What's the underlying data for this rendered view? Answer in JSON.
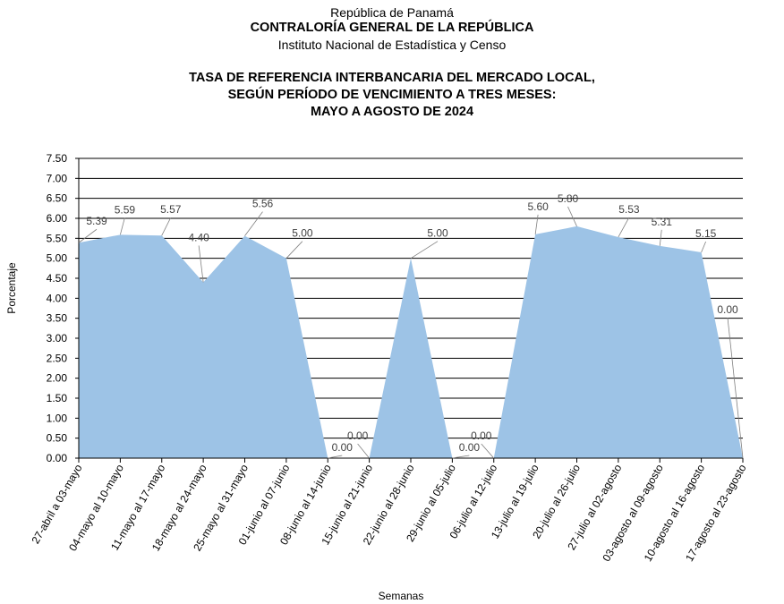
{
  "header": {
    "country": "República de Panamá",
    "institution": "CONTRALORÍA GENERAL DE LA REPÚBLICA",
    "office": "Instituto  Nacional  de Estadística  y  Censo"
  },
  "chart_data": {
    "type": "area",
    "title_lines": [
      "TASA DE REFERENCIA INTERBANCARIA DEL MERCADO LOCAL,",
      "SEGÚN PERÍODO DE VENCIMIENTO A TRES MESES:",
      "MAYO A AGOSTO DE 2024"
    ],
    "xlabel": "Semanas",
    "ylabel": "Porcentaje",
    "ylim": [
      0,
      7.5
    ],
    "ytick_step": 0.5,
    "yticks": [
      "0.00",
      "0.50",
      "1.00",
      "1.50",
      "2.00",
      "2.50",
      "3.00",
      "3.50",
      "4.00",
      "4.50",
      "5.00",
      "5.50",
      "6.00",
      "6.50",
      "7.00",
      "7.50"
    ],
    "grid": true,
    "fill_color": "#9dc3e6",
    "categories": [
      "27-abril a 03-mayo",
      "04-mayo al 10-mayo",
      "11-mayo al 17-mayo",
      "18-mayo al 24-mayo",
      "25-mayo al 31-mayo",
      "01-junio al 07-junio",
      "08-junio al 14-junio",
      "15-junio al 21-junio",
      "22-junio al 28-junio",
      "29-junio al 05-julio",
      "06-julio al 12-julio",
      "13-julio al 19-julio",
      "20-julio al 26-julio",
      "27-julio al 02-agosto",
      "03-agosto al 09-agosto",
      "10-agosto al 16-agosto",
      "17-agosto al 23-agosto"
    ],
    "values": [
      5.39,
      5.59,
      5.57,
      4.4,
      5.56,
      5.0,
      0.0,
      0.0,
      5.0,
      0.0,
      0.0,
      5.6,
      5.8,
      5.53,
      5.31,
      5.15,
      0.0
    ],
    "data_labels": [
      "5.39",
      "5.59",
      "5.57",
      "4.40",
      "5.56",
      "5.00",
      "0.00",
      "0.00",
      "5.00",
      "0.00",
      "0.00",
      "5.60",
      "5.80",
      "5.53",
      "5.31",
      "5.15",
      "0.00"
    ]
  }
}
